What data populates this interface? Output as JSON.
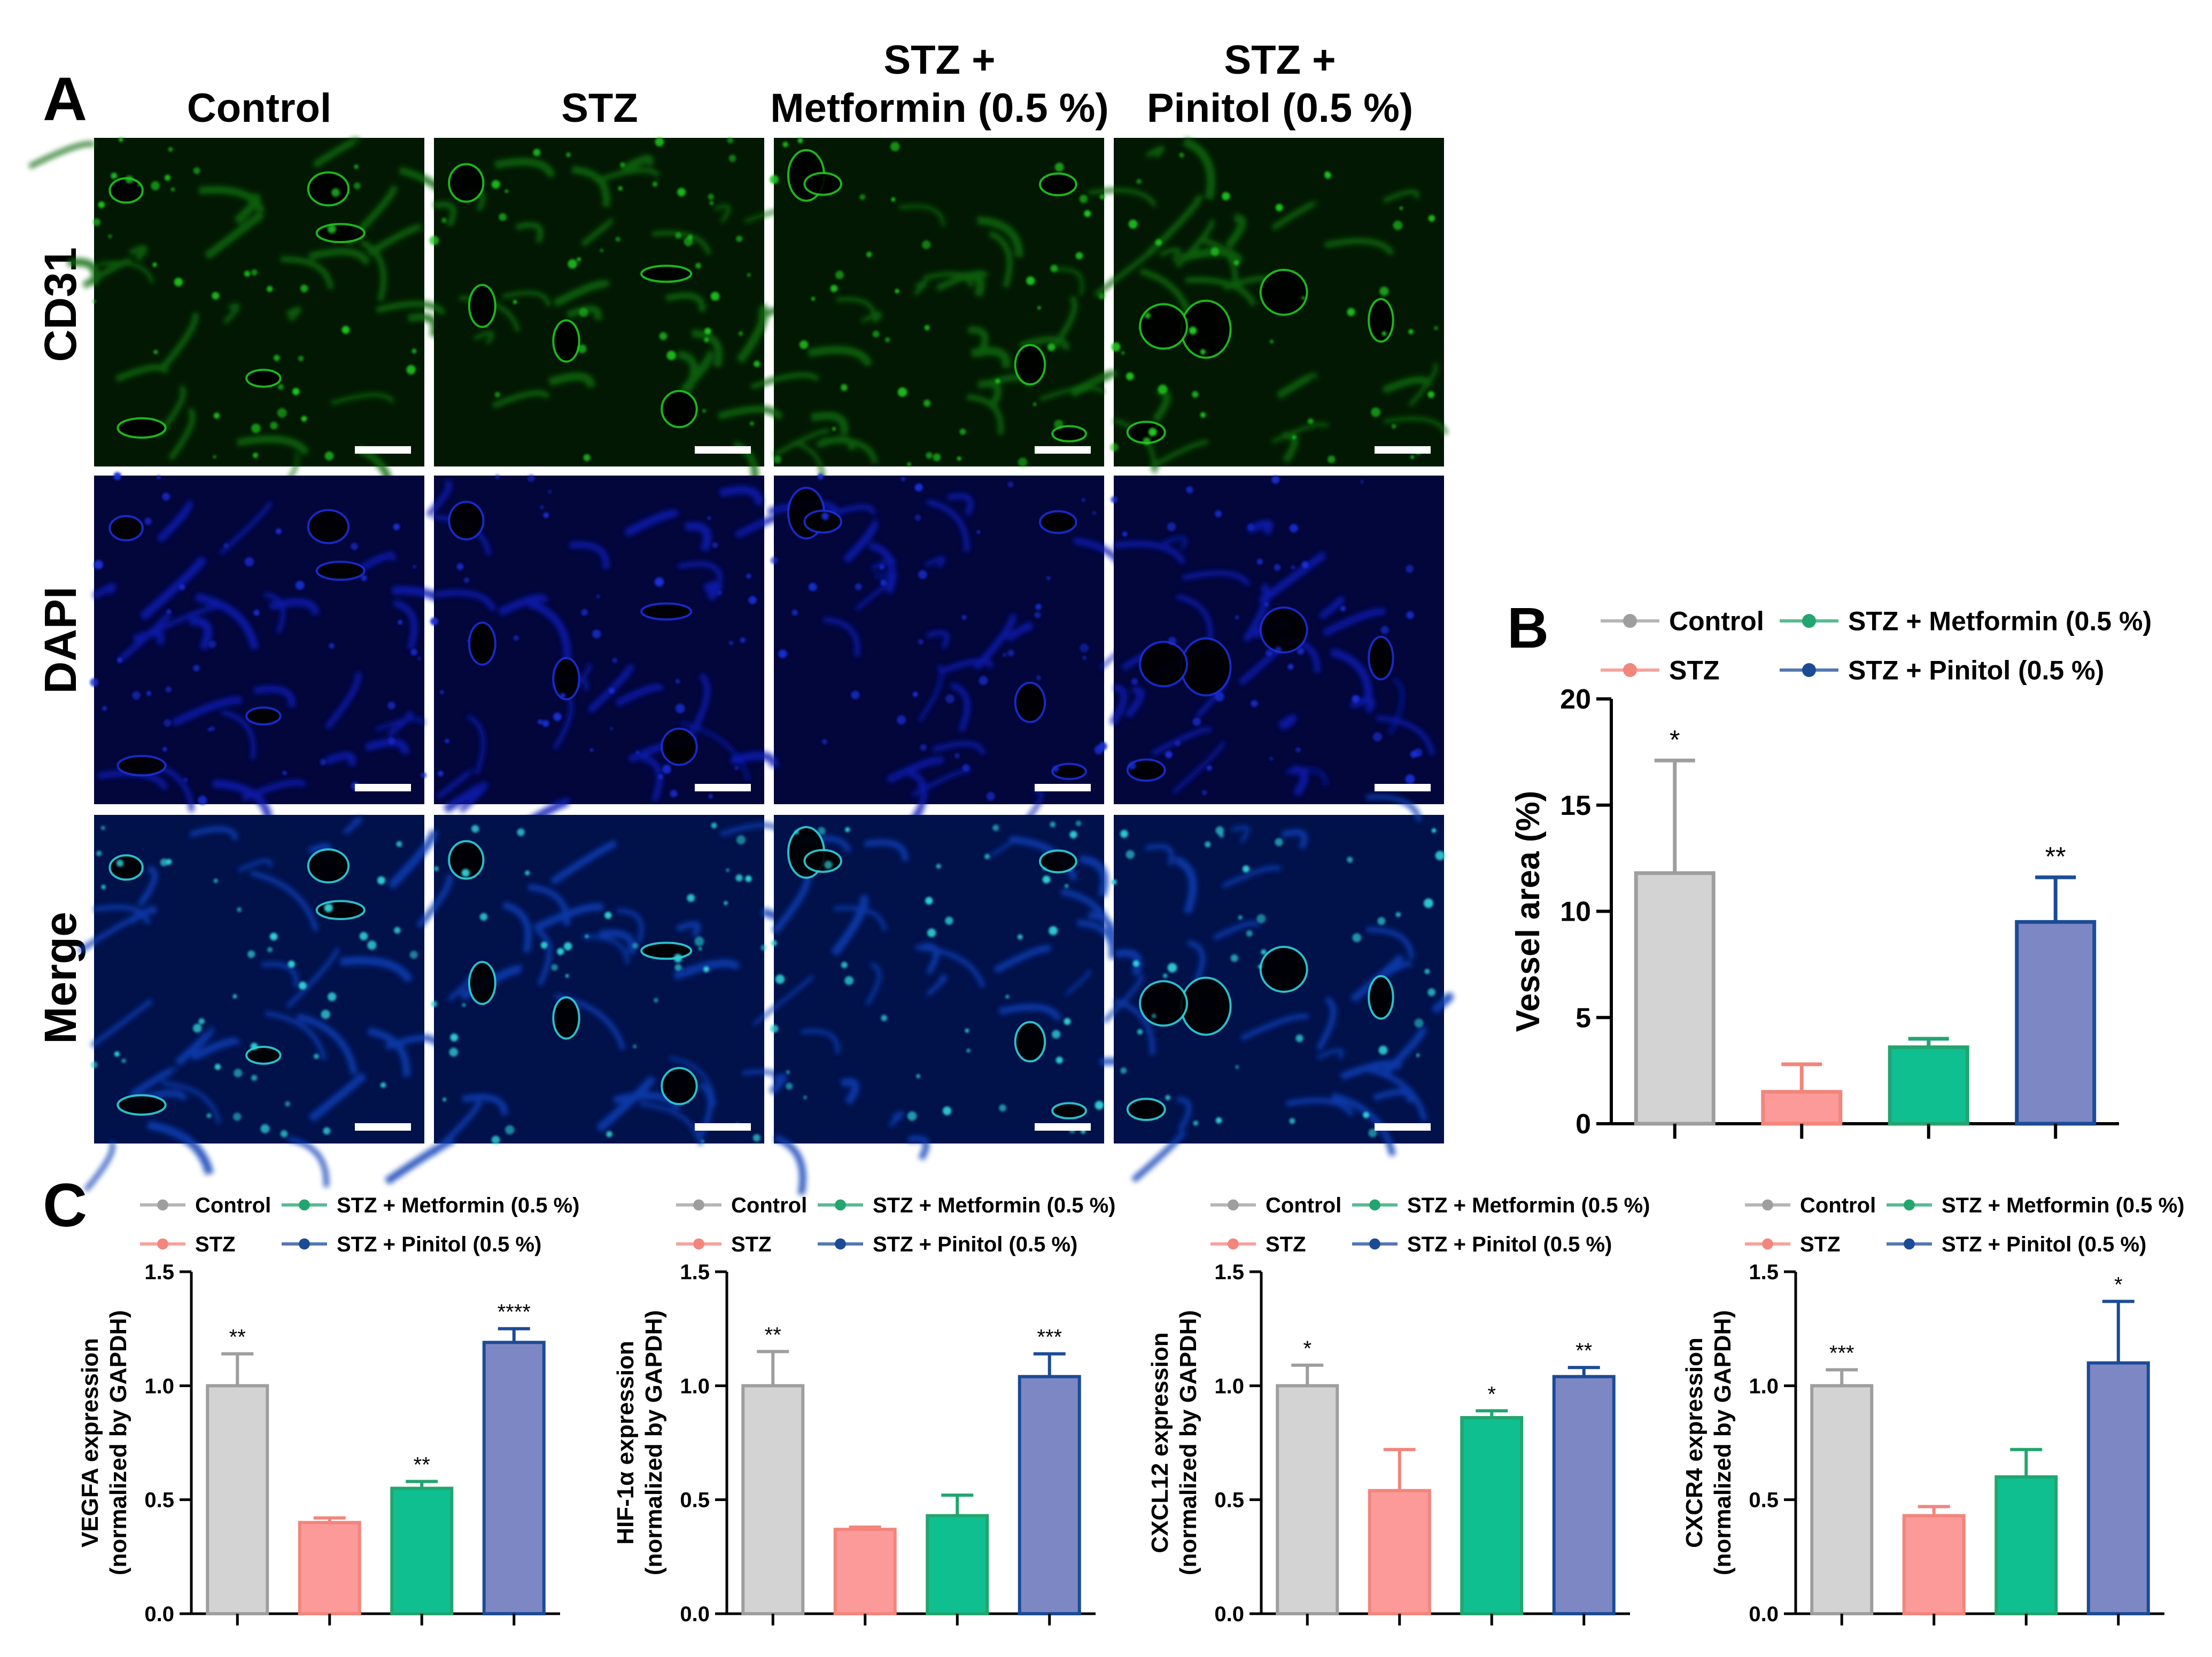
{
  "figure": {
    "panel_labels": [
      "A",
      "B",
      "C"
    ],
    "micrograph_columns": [
      "Control",
      "STZ",
      "STZ +\nMetformin (0.5 %)",
      "STZ +\nPinitol (0.5 %)"
    ],
    "micrograph_rows": [
      "CD31",
      "DAPI",
      "Merge"
    ]
  },
  "colors": {
    "control": "#9e9e9e",
    "control_fill": "#d3d3d3",
    "stz": "#f2857c",
    "stz_fill": "#fb9a98",
    "metformin": "#22a56f",
    "metformin_fill": "#10bf8f",
    "pinitol": "#1c4b96",
    "pinitol_fill": "#7c87c4",
    "cd31": "#1fc81f",
    "dapi": "#1a2fd6",
    "merge": "#2fd2d8"
  },
  "legend_labels": [
    "Control",
    "STZ + Metformin (0.5 %)",
    "STZ",
    "STZ + Pinitol (0.5 %)"
  ],
  "chart_data": [
    {
      "id": "B",
      "type": "bar",
      "categories": [
        "Control",
        "STZ",
        "STZ + Metformin (0.5 %)",
        "STZ + Pinitol (0.5 %)"
      ],
      "values": [
        11.8,
        1.5,
        3.6,
        9.5
      ],
      "errors": [
        5.3,
        1.3,
        0.4,
        2.1
      ],
      "significance": [
        "*",
        "",
        "",
        "**"
      ],
      "ylabel": "Vessel area (%)",
      "ylim": [
        0,
        20
      ],
      "yticks": [
        "0",
        "5",
        "10",
        "15",
        "20"
      ],
      "tick_values": [
        0,
        5,
        10,
        15,
        20
      ]
    },
    {
      "id": "C1",
      "type": "bar",
      "categories": [
        "Control",
        "STZ",
        "STZ + Metformin (0.5 %)",
        "STZ + Pinitol (0.5 %)"
      ],
      "values": [
        1.0,
        0.4,
        0.55,
        1.19
      ],
      "errors": [
        0.14,
        0.02,
        0.03,
        0.06
      ],
      "significance": [
        "**",
        "",
        "**",
        "****"
      ],
      "ylabel": "VEGFA expression",
      "ylabel2": "(normalized by GAPDH)",
      "ylim": [
        0,
        1.5
      ],
      "yticks": [
        "0.0",
        "0.5",
        "1.0",
        "1.5"
      ],
      "tick_values": [
        0,
        0.5,
        1.0,
        1.5
      ]
    },
    {
      "id": "C2",
      "type": "bar",
      "categories": [
        "Control",
        "STZ",
        "STZ + Metformin (0.5 %)",
        "STZ + Pinitol (0.5 %)"
      ],
      "values": [
        1.0,
        0.37,
        0.43,
        1.04
      ],
      "errors": [
        0.15,
        0.01,
        0.09,
        0.1
      ],
      "significance": [
        "**",
        "",
        "",
        "***"
      ],
      "ylabel": "HIF-1α expression",
      "ylabel2": "(normalized by GAPDH)",
      "ylim": [
        0,
        1.5
      ],
      "yticks": [
        "0.0",
        "0.5",
        "1.0",
        "1.5"
      ],
      "tick_values": [
        0,
        0.5,
        1.0,
        1.5
      ]
    },
    {
      "id": "C3",
      "type": "bar",
      "categories": [
        "Control",
        "STZ",
        "STZ + Metformin (0.5 %)",
        "STZ + Pinitol (0.5 %)"
      ],
      "values": [
        1.0,
        0.54,
        0.86,
        1.04
      ],
      "errors": [
        0.09,
        0.18,
        0.03,
        0.04
      ],
      "significance": [
        "*",
        "",
        "*",
        "**"
      ],
      "ylabel": "CXCL12 expression",
      "ylabel2": "(normalized by GAPDH)",
      "ylim": [
        0,
        1.5
      ],
      "yticks": [
        "0.0",
        "0.5",
        "1.0",
        "1.5"
      ],
      "tick_values": [
        0,
        0.5,
        1.0,
        1.5
      ]
    },
    {
      "id": "C4",
      "type": "bar",
      "categories": [
        "Control",
        "STZ",
        "STZ + Metformin (0.5 %)",
        "STZ + Pinitol (0.5 %)"
      ],
      "values": [
        1.0,
        0.43,
        0.6,
        1.1
      ],
      "errors": [
        0.07,
        0.04,
        0.12,
        0.27
      ],
      "significance": [
        "***",
        "",
        "",
        "*"
      ],
      "ylabel": "CXCR4 expression",
      "ylabel2": "(normalized by GAPDH)",
      "ylim": [
        0,
        1.5
      ],
      "yticks": [
        "0.0",
        "0.5",
        "1.0",
        "1.5"
      ],
      "tick_values": [
        0,
        0.5,
        1.0,
        1.5
      ]
    }
  ]
}
